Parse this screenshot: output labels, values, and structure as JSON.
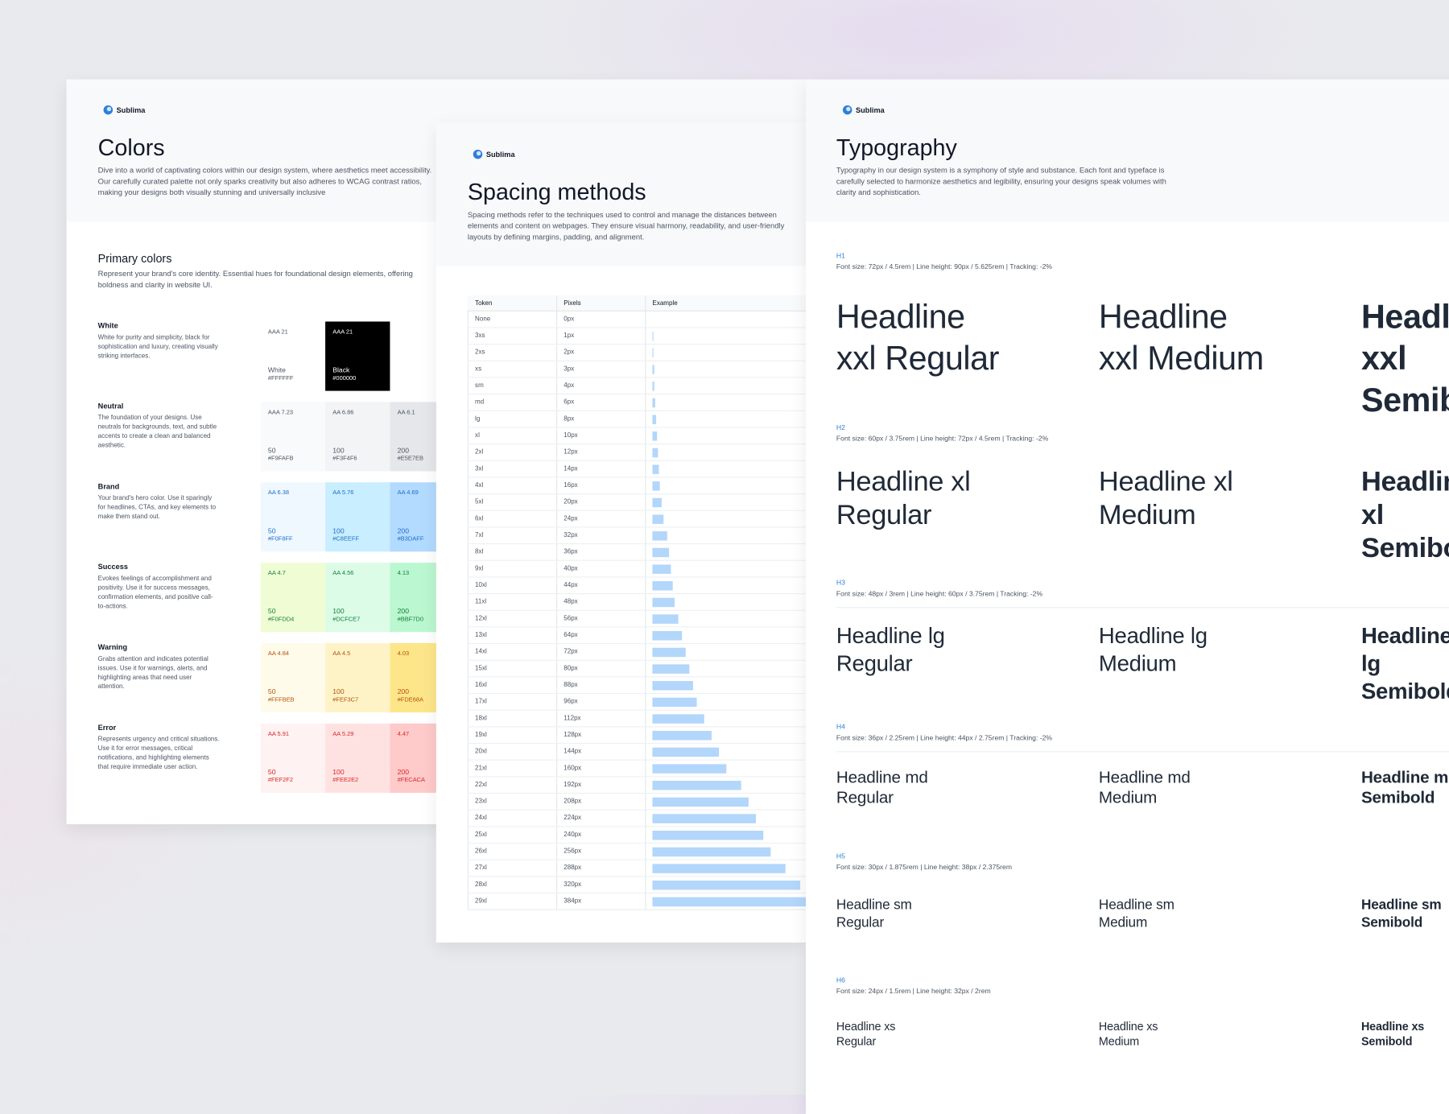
{
  "brand": "Sublima",
  "colors_page": {
    "title": "Colors",
    "description": "Dive into a world of captivating colors within our design system, where aesthetics meet accessibility. Our carefully curated palette not only sparks creativity but also adheres to WCAG contrast ratios, making your designs both visually stunning and universally inclusive",
    "section_title": "Primary colors",
    "section_description": "Represent your brand's core identity. Essential hues for foundational design elements, offering boldness and clarity in website UI.",
    "rows": [
      {
        "name": "White",
        "description": "White for purity and simplicity, black for sophistication and luxury, creating visually striking interfaces.",
        "text_color": "#4b5563",
        "swatches": [
          {
            "ratio": "AAA 21",
            "name": "White",
            "hex": "#FFFFFF",
            "text_color": "#4b5563"
          },
          {
            "ratio": "AAA 21",
            "name": "Black",
            "hex": "#000000",
            "text_color": "#ffffff"
          }
        ]
      },
      {
        "name": "Neutral",
        "description": "The foundation of your designs. Use neutrals for backgrounds, text, and subtle accents to create a clean and balanced aesthetic.",
        "text_color": "#4b5563",
        "swatches": [
          {
            "ratio": "AAA 7.23",
            "name": "50",
            "hex": "#F9FAFB",
            "text_color": "#4b5563"
          },
          {
            "ratio": "AA 6.86",
            "name": "100",
            "hex": "#F3F4F6",
            "text_color": "#4b5563"
          },
          {
            "ratio": "AA 6.1",
            "name": "200",
            "hex": "#E5E7EB",
            "text_color": "#4b5563"
          }
        ]
      },
      {
        "name": "Brand",
        "description": "Your brand's hero color. Use it sparingly for headlines, CTAs, and key elements to make them stand out.",
        "text_color": "#1d6fc9",
        "swatches": [
          {
            "ratio": "AA 6.38",
            "name": "50",
            "hex": "#F0F8FF",
            "text_color": "#1d6fc9"
          },
          {
            "ratio": "AA 5.76",
            "name": "100",
            "hex": "#C8EEFF",
            "text_color": "#1d6fc9"
          },
          {
            "ratio": "AA 4.69",
            "name": "200",
            "hex": "#B3DAFF",
            "text_color": "#1d6fc9"
          }
        ]
      },
      {
        "name": "Success",
        "description": "Evokes feelings of accomplishment and positivity. Use it for success messages, confirmation elements, and positive call-to-actions.",
        "text_color": "#15803d",
        "swatches": [
          {
            "ratio": "AA 4.7",
            "name": "50",
            "hex": "#F0FDD4",
            "text_color": "#15803d"
          },
          {
            "ratio": "AA 4.56",
            "name": "100",
            "hex": "#DCFCE7",
            "text_color": "#15803d"
          },
          {
            "ratio": "4.13",
            "name": "200",
            "hex": "#BBF7D0",
            "text_color": "#15803d"
          }
        ]
      },
      {
        "name": "Warning",
        "description": "Grabs attention and indicates potential issues. Use it for warnings, alerts, and highlighting areas that need user attention.",
        "text_color": "#b45309",
        "swatches": [
          {
            "ratio": "AA 4.84",
            "name": "50",
            "hex": "#FFFBEB",
            "text_color": "#b45309"
          },
          {
            "ratio": "AA 4.5",
            "name": "100",
            "hex": "#FEF3C7",
            "text_color": "#b45309"
          },
          {
            "ratio": "4.03",
            "name": "200",
            "hex": "#FDE68A",
            "text_color": "#b45309"
          }
        ]
      },
      {
        "name": "Error",
        "description": "Represents urgency and critical situations. Use it for error messages, critical notifications, and highlighting elements that require immediate user action.",
        "text_color": "#dc2626",
        "swatches": [
          {
            "ratio": "AA 5.91",
            "name": "50",
            "hex": "#FEF2F2",
            "text_color": "#dc2626"
          },
          {
            "ratio": "AA 5.29",
            "name": "100",
            "hex": "#FEE2E2",
            "text_color": "#dc2626"
          },
          {
            "ratio": "4.47",
            "name": "200",
            "hex": "#FECACA",
            "text_color": "#dc2626"
          }
        ]
      }
    ]
  },
  "spacing_page": {
    "title": "Spacing methods",
    "description": "Spacing methods refer to the techniques used to control and manage the distances between elements and content on webpages. They ensure visual harmony, readability, and user-friendly layouts by defining margins, padding, and alignment.",
    "table": {
      "headers": [
        "Token",
        "Pixels",
        "Example"
      ],
      "bar_color": "#b3d6fb",
      "rows": [
        [
          "None",
          "0px"
        ],
        [
          "3xs",
          "1px"
        ],
        [
          "2xs",
          "2px"
        ],
        [
          "xs",
          "3px"
        ],
        [
          "sm",
          "4px"
        ],
        [
          "md",
          "6px"
        ],
        [
          "lg",
          "8px"
        ],
        [
          "xl",
          "10px"
        ],
        [
          "2xl",
          "12px"
        ],
        [
          "3xl",
          "14px"
        ],
        [
          "4xl",
          "16px"
        ],
        [
          "5xl",
          "20px"
        ],
        [
          "6xl",
          "24px"
        ],
        [
          "7xl",
          "32px"
        ],
        [
          "8xl",
          "36px"
        ],
        [
          "9xl",
          "40px"
        ],
        [
          "10xl",
          "44px"
        ],
        [
          "11xl",
          "48px"
        ],
        [
          "12xl",
          "56px"
        ],
        [
          "13xl",
          "64px"
        ],
        [
          "14xl",
          "72px"
        ],
        [
          "15xl",
          "80px"
        ],
        [
          "16xl",
          "88px"
        ],
        [
          "17xl",
          "96px"
        ],
        [
          "18xl",
          "112px"
        ],
        [
          "19xl",
          "128px"
        ],
        [
          "20xl",
          "144px"
        ],
        [
          "21xl",
          "160px"
        ],
        [
          "22xl",
          "192px"
        ],
        [
          "23xl",
          "208px"
        ],
        [
          "24xl",
          "224px"
        ],
        [
          "25xl",
          "240px"
        ],
        [
          "26xl",
          "256px"
        ],
        [
          "27xl",
          "288px"
        ],
        [
          "28xl",
          "320px"
        ],
        [
          "29xl",
          "384px"
        ]
      ]
    }
  },
  "typography_page": {
    "title": "Typography",
    "description": "Typography in our design system is a symphony of style and substance. Each font and typeface is carefully selected to harmonize aesthetics and legibility, ensuring your designs speak volumes with clarity and sophistication.",
    "sections": [
      {
        "label": "H1",
        "spec": "Font size: 72px / 4.5rem | Line height: 90px / 5.625rem | Tracking: -2%",
        "samples": [
          "Headline\nxxl Regular",
          "Headline\nxxl Medium",
          "Headline\nxxl Semibold"
        ]
      },
      {
        "label": "H2",
        "spec": "Font size: 60px / 3.75rem | Line height: 72px / 4.5rem | Tracking: -2%",
        "samples": [
          "Headline xl\nRegular",
          "Headline xl\nMedium",
          "Headline xl\nSemibold"
        ]
      },
      {
        "label": "H3",
        "spec": "Font size: 48px / 3rem | Line height: 60px / 3.75rem | Tracking: -2%",
        "samples": [
          "Headline lg\nRegular",
          "Headline lg\nMedium",
          "Headline lg\nSemibold"
        ]
      },
      {
        "label": "H4",
        "spec": "Font size: 36px / 2.25rem | Line height: 44px / 2.75rem | Tracking: -2%",
        "samples": [
          "Headline md\nRegular",
          "Headline md\nMedium",
          "Headline md\nSemibold"
        ]
      },
      {
        "label": "H5",
        "spec": "Font size: 30px / 1.875rem | Line height: 38px / 2.375rem",
        "samples": [
          "Headline sm\nRegular",
          "Headline sm\nMedium",
          "Headline sm\nSemibold"
        ]
      },
      {
        "label": "H6",
        "spec": "Font size: 24px / 1.5rem | Line height: 32px / 2rem",
        "samples": [
          "Headline xs\nRegular",
          "Headline xs\nMedium",
          "Headline xs\nSemibold"
        ]
      }
    ]
  }
}
